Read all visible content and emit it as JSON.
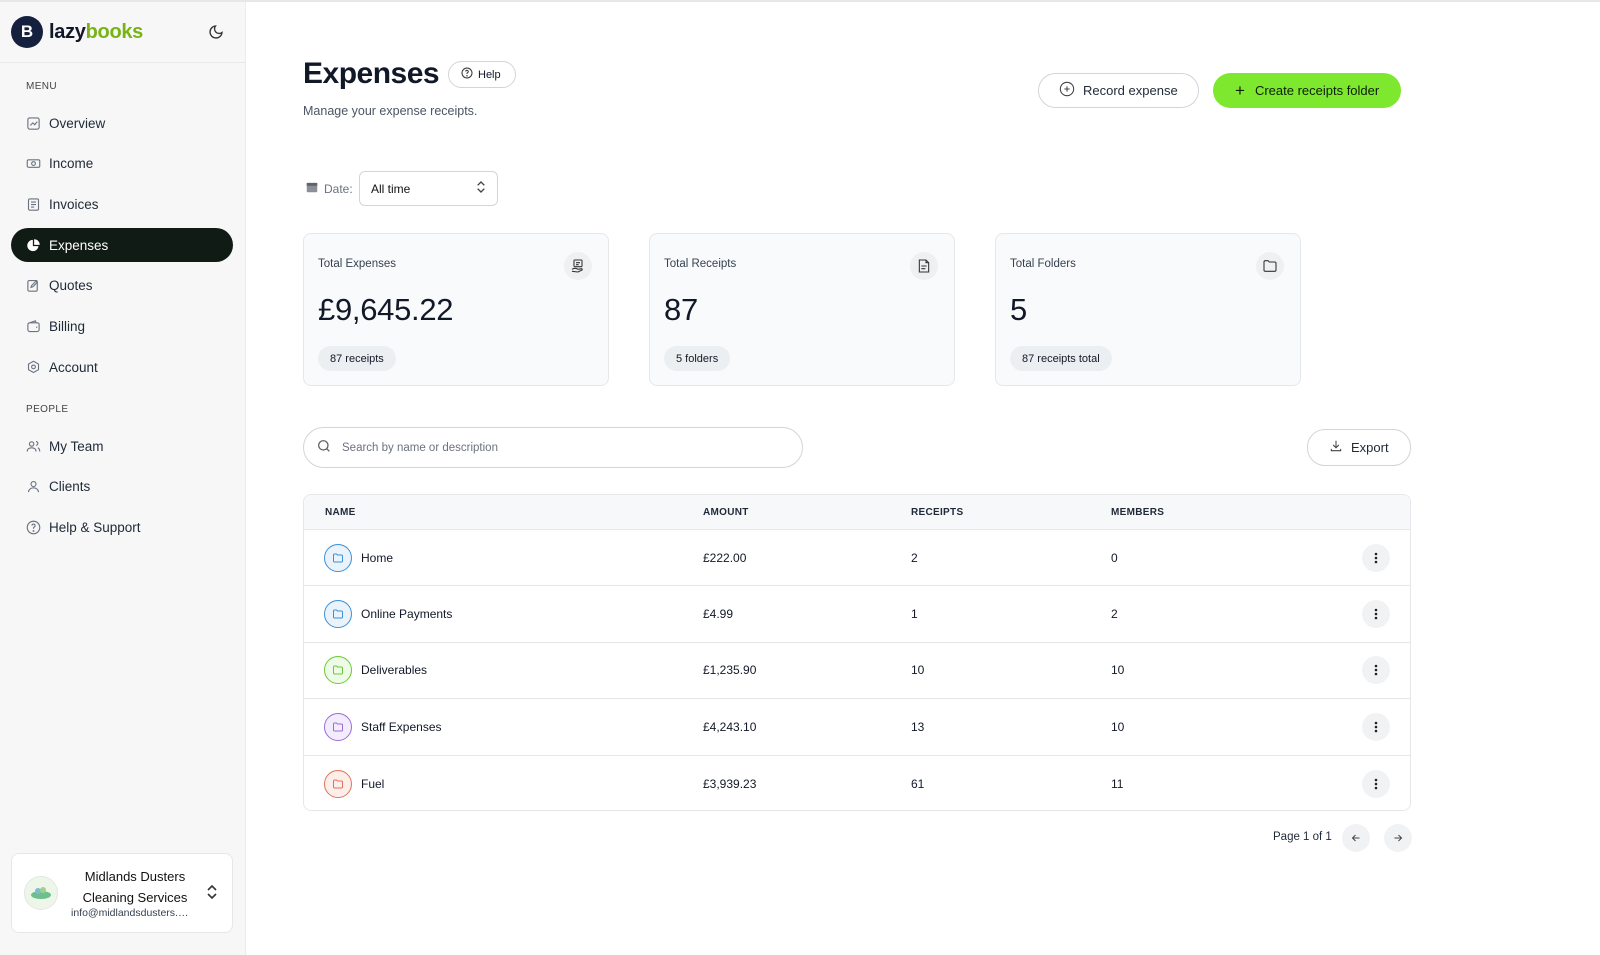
{
  "app": {
    "logo_letter": "B",
    "logo_part1": "lazy",
    "logo_part2": "books",
    "brand_color": "#7ab317",
    "accent_color": "#7ee82e"
  },
  "sidebar": {
    "menu_label": "MENU",
    "people_label": "PEOPLE",
    "menu_items": [
      {
        "label": "Overview",
        "icon": "chart-icon"
      },
      {
        "label": "Income",
        "icon": "money-icon"
      },
      {
        "label": "Invoices",
        "icon": "document-icon"
      },
      {
        "label": "Expenses",
        "icon": "pie-chart-icon",
        "active": true
      },
      {
        "label": "Quotes",
        "icon": "edit-document-icon"
      },
      {
        "label": "Billing",
        "icon": "wallet-icon"
      },
      {
        "label": "Account",
        "icon": "settings-icon"
      }
    ],
    "people_items": [
      {
        "label": "My Team",
        "icon": "team-icon"
      },
      {
        "label": "Clients",
        "icon": "user-icon"
      },
      {
        "label": "Help & Support",
        "icon": "help-icon"
      }
    ],
    "org": {
      "name": "Midlands Dusters Cleaning Services",
      "email": "info@midlandsdusters.co.uk"
    }
  },
  "header": {
    "title": "Expenses",
    "help_label": "Help",
    "subtitle": "Manage your expense receipts.",
    "record_label": "Record expense",
    "create_label": "Create receipts folder"
  },
  "filter": {
    "date_label": "Date:",
    "date_value": "All time"
  },
  "stats": [
    {
      "title": "Total Expenses",
      "value": "£9,645.22",
      "pill": "87 receipts",
      "icon": "receipt-hand-icon"
    },
    {
      "title": "Total Receipts",
      "value": "87",
      "pill": "5 folders",
      "icon": "receipt-icon"
    },
    {
      "title": "Total Folders",
      "value": "5",
      "pill": "87 receipts total",
      "icon": "folder-icon"
    }
  ],
  "search": {
    "placeholder": "Search by name or description"
  },
  "export_label": "Export",
  "table": {
    "headers": {
      "name": "NAME",
      "amount": "AMOUNT",
      "receipts": "RECEIPTS",
      "members": "MEMBERS"
    },
    "rows": [
      {
        "name": "Home",
        "amount": "£222.00",
        "receipts": "2",
        "members": "0",
        "color": "#3b8fd6",
        "bg": "#eaf3fc"
      },
      {
        "name": "Online Payments",
        "amount": "£4.99",
        "receipts": "1",
        "members": "2",
        "color": "#3b8fd6",
        "bg": "#eaf3fc"
      },
      {
        "name": "Deliverables",
        "amount": "£1,235.90",
        "receipts": "10",
        "members": "10",
        "color": "#6cc93a",
        "bg": "#eefbe6"
      },
      {
        "name": "Staff Expenses",
        "amount": "£4,243.10",
        "receipts": "13",
        "members": "10",
        "color": "#9b6cd6",
        "bg": "#f3ecfc"
      },
      {
        "name": "Fuel",
        "amount": "£3,939.23",
        "receipts": "61",
        "members": "11",
        "color": "#e0735a",
        "bg": "#fdeee9"
      }
    ]
  },
  "pagination": {
    "label": "Page 1 of 1"
  }
}
